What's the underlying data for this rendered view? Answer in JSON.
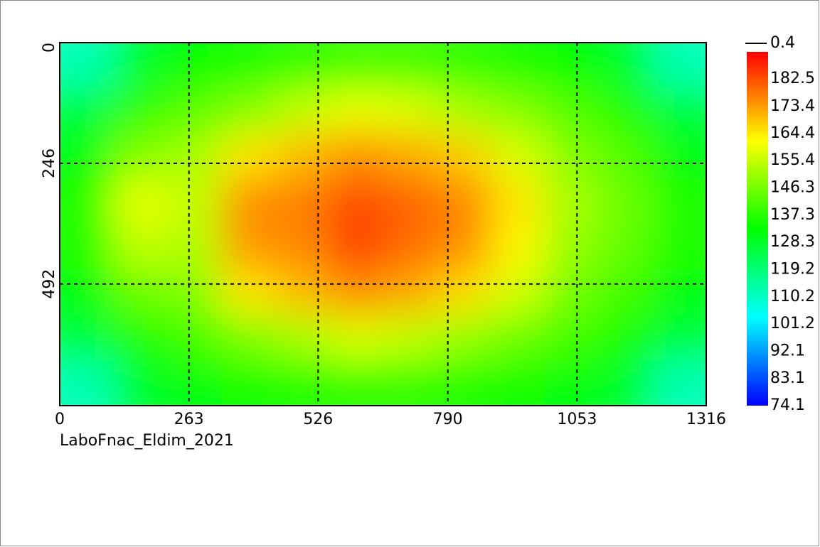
{
  "chart_data": {
    "type": "heatmap",
    "caption": "LaboFnac_Eldim_2021",
    "x": [
      55,
      165,
      274,
      384,
      494,
      603,
      713,
      823,
      932,
      1042,
      1152,
      1261
    ],
    "y": [
      46,
      139,
      231,
      324,
      416,
      509,
      601,
      694
    ],
    "z": [
      [
        112,
        128,
        133,
        135,
        138,
        140,
        140,
        138,
        135,
        133,
        128,
        112
      ],
      [
        126,
        138,
        143,
        148,
        155,
        160,
        158,
        152,
        148,
        142,
        137,
        126
      ],
      [
        132,
        148,
        152,
        165,
        170,
        175,
        172,
        168,
        158,
        148,
        142,
        132
      ],
      [
        136,
        160,
        155,
        175,
        177,
        183,
        180,
        176,
        165,
        152,
        145,
        136
      ],
      [
        136,
        155,
        153,
        174,
        176,
        184,
        179,
        175,
        163,
        150,
        144,
        136
      ],
      [
        132,
        145,
        148,
        165,
        170,
        175,
        172,
        166,
        157,
        146,
        140,
        132
      ],
      [
        126,
        136,
        140,
        147,
        152,
        158,
        155,
        150,
        145,
        140,
        135,
        126
      ],
      [
        112,
        128,
        132,
        134,
        136,
        138,
        138,
        136,
        134,
        132,
        128,
        112
      ]
    ],
    "xlim": [
      0,
      1316
    ],
    "xticks": [
      0,
      263,
      526,
      790,
      1053,
      1316
    ],
    "ylim": [
      0,
      740
    ],
    "yticks": [
      0,
      246,
      492
    ],
    "grid": true,
    "zlim": [
      74.1,
      191.5
    ],
    "colorbar_ticks": [
      182.5,
      173.4,
      164.4,
      155.4,
      146.3,
      137.3,
      128.3,
      119.2,
      110.2,
      101.2,
      92.1,
      83.1,
      74.1
    ],
    "colorscale": [
      "#0000ff",
      "#00ffff",
      "#00ff00",
      "#ffff00",
      "#ff0000"
    ],
    "black_value": 0.4
  }
}
